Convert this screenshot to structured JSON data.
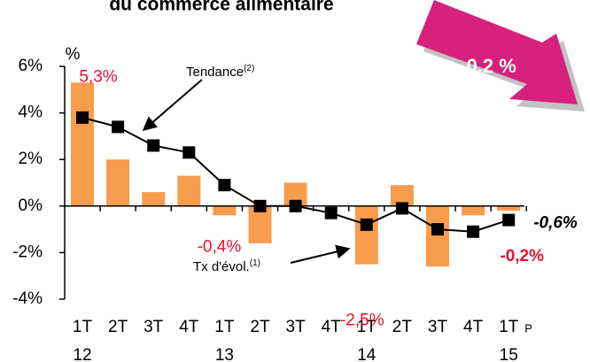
{
  "chart_data": {
    "type": "bar",
    "title": "du commerce alimentaire",
    "y_unit": "%",
    "categories": [
      "1T",
      "2T",
      "3T",
      "4T",
      "1T",
      "2T",
      "3T",
      "4T",
      "1T",
      "2T",
      "3T",
      "4T",
      "1T"
    ],
    "years": [
      "12",
      null,
      null,
      null,
      "13",
      null,
      null,
      null,
      "14",
      null,
      null,
      null,
      "15"
    ],
    "last_note": "P",
    "ylim": [
      -4,
      6
    ],
    "yticks": [
      {
        "value": -4,
        "label": "-4%"
      },
      {
        "value": -2,
        "label": "-2%"
      },
      {
        "value": 0,
        "label": "0%"
      },
      {
        "value": 2,
        "label": "2%"
      },
      {
        "value": 4,
        "label": "4%"
      },
      {
        "value": 6,
        "label": "6%"
      }
    ],
    "series": [
      {
        "name": "Tx d'évol.",
        "name_sup": "(1)",
        "type": "bar",
        "color": "#f89c4d",
        "values": [
          5.3,
          2.0,
          0.6,
          1.3,
          -0.4,
          -1.6,
          1.0,
          0.0,
          -2.5,
          0.9,
          -2.6,
          -0.4,
          -0.2
        ],
        "value_labels": [
          "5,3%",
          null,
          null,
          null,
          "-0,4%",
          null,
          null,
          null,
          "-2,5%",
          null,
          null,
          null,
          "-0,2%"
        ]
      },
      {
        "name": "Tendance",
        "name_sup": "(2)",
        "type": "line",
        "color": "#000000",
        "values": [
          3.8,
          3.4,
          2.6,
          2.3,
          0.9,
          0.0,
          0.0,
          -0.3,
          -0.8,
          -0.1,
          -1.0,
          -1.1,
          -0.6
        ],
        "value_labels": [
          null,
          null,
          null,
          null,
          null,
          null,
          null,
          null,
          null,
          null,
          null,
          null,
          "-0,6%"
        ]
      }
    ],
    "callout": {
      "text": "- 0,2 %",
      "color": "#d6217d"
    }
  }
}
